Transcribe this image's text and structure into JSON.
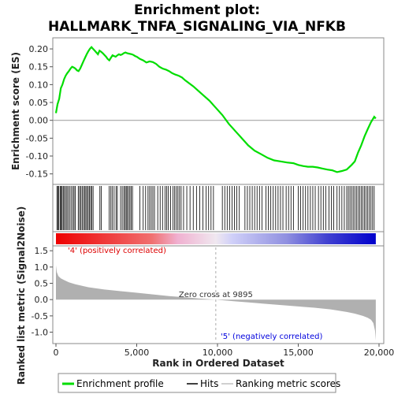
{
  "chart_data": {
    "type": "line",
    "title_line1": "Enrichment plot:",
    "title_line2": "HALLMARK_TNFA_SIGNALING_VIA_NFKB",
    "es_panel": {
      "ylabel": "Enrichment score (ES)",
      "ylim": [
        -0.175,
        0.22
      ],
      "yticks": [
        "0.20",
        "0.15",
        "0.10",
        "0.05",
        "0.00",
        "-0.05",
        "-0.10",
        "-0.15"
      ],
      "ytick_values": [
        0.2,
        0.15,
        0.1,
        0.05,
        0.0,
        -0.05,
        -0.1,
        -0.15
      ],
      "color": "#00dd00",
      "x": [
        0,
        100,
        200,
        300,
        400,
        500,
        600,
        700,
        800,
        900,
        1000,
        1100,
        1200,
        1300,
        1400,
        1500,
        1600,
        1700,
        1800,
        1900,
        2000,
        2100,
        2200,
        2300,
        2400,
        2500,
        2600,
        2700,
        2800,
        2900,
        3000,
        3100,
        3200,
        3300,
        3400,
        3500,
        3600,
        3700,
        3800,
        3900,
        4000,
        4100,
        4200,
        4300,
        4400,
        4500,
        4600,
        4700,
        4800,
        4900,
        5000,
        5200,
        5400,
        5600,
        5800,
        6000,
        6200,
        6400,
        6600,
        6800,
        7000,
        7200,
        7400,
        7600,
        7800,
        8000,
        8500,
        9000,
        9500,
        9900,
        10300,
        10700,
        11100,
        11500,
        11900,
        12300,
        12700,
        13100,
        13500,
        13900,
        14300,
        14700,
        15000,
        15300,
        15600,
        15900,
        16200,
        16500,
        16800,
        17100,
        17400,
        17700,
        18000,
        18300,
        18500,
        18700,
        18900,
        19100,
        19300,
        19500,
        19700,
        19800
      ],
      "y": [
        0.02,
        0.045,
        0.06,
        0.09,
        0.1,
        0.115,
        0.125,
        0.132,
        0.138,
        0.145,
        0.15,
        0.148,
        0.145,
        0.14,
        0.138,
        0.145,
        0.155,
        0.165,
        0.175,
        0.185,
        0.193,
        0.2,
        0.205,
        0.2,
        0.195,
        0.19,
        0.185,
        0.195,
        0.192,
        0.188,
        0.183,
        0.178,
        0.172,
        0.168,
        0.175,
        0.182,
        0.18,
        0.178,
        0.182,
        0.185,
        0.183,
        0.185,
        0.188,
        0.19,
        0.188,
        0.187,
        0.186,
        0.185,
        0.183,
        0.18,
        0.178,
        0.172,
        0.168,
        0.162,
        0.165,
        0.163,
        0.158,
        0.15,
        0.145,
        0.142,
        0.138,
        0.132,
        0.128,
        0.125,
        0.12,
        0.112,
        0.095,
        0.075,
        0.055,
        0.035,
        0.015,
        -0.01,
        -0.03,
        -0.05,
        -0.07,
        -0.085,
        -0.095,
        -0.105,
        -0.112,
        -0.115,
        -0.118,
        -0.12,
        -0.125,
        -0.128,
        -0.13,
        -0.13,
        -0.132,
        -0.135,
        -0.138,
        -0.14,
        -0.145,
        -0.142,
        -0.138,
        -0.125,
        -0.115,
        -0.09,
        -0.07,
        -0.045,
        -0.025,
        -0.005,
        0.01,
        0.005
      ]
    },
    "hits": {
      "positions": [
        60,
        120,
        180,
        260,
        320,
        380,
        450,
        520,
        600,
        680,
        760,
        860,
        940,
        1040,
        1120,
        1200,
        1380,
        1460,
        1540,
        1620,
        1700,
        1780,
        1850,
        1920,
        2000,
        2080,
        2150,
        2220,
        2300,
        2720,
        2800,
        3300,
        3400,
        3480,
        3600,
        3720,
        3800,
        4000,
        4100,
        4200,
        4280,
        4350,
        4420,
        4500,
        4580,
        4660,
        4740,
        5200,
        5400,
        5550,
        5700,
        5800,
        5900,
        6000,
        6100,
        6300,
        6450,
        6600,
        6750,
        6850,
        6950,
        7100,
        7250,
        7350,
        7450,
        7550,
        7650,
        7750,
        7900,
        8100,
        8300,
        8500,
        8700,
        8900,
        9100,
        9300,
        9450,
        9600,
        9750,
        10300,
        10450,
        10600,
        10750,
        10900,
        11050,
        11200,
        11350,
        11700,
        11850,
        12000,
        12150,
        12300,
        12450,
        12600,
        12750,
        13000,
        13150,
        13300,
        13450,
        13600,
        13750,
        13900,
        14050,
        14250,
        14400,
        14550,
        14700,
        15000,
        15150,
        15300,
        15450,
        15600,
        15750,
        15900,
        16050,
        16250,
        16400,
        16550,
        16700,
        16900,
        17050,
        17200,
        17400,
        17550,
        17700,
        17850,
        18000,
        18100,
        18200,
        18300,
        18400,
        18500,
        18600,
        18700,
        18800,
        18900,
        19000,
        19100,
        19200,
        19300,
        19400,
        19500,
        19600,
        19700
      ]
    },
    "ranked_metric": {
      "ylabel": "Ranked list metric (Signal2Noise)",
      "xlabel": "Rank in Ordered Dataset",
      "ylim": [
        -1.35,
        1.65
      ],
      "yticks": [
        "1.5",
        "1.0",
        "0.5",
        "0.0",
        "-0.5",
        "-1.0"
      ],
      "ytick_values": [
        1.5,
        1.0,
        0.5,
        0.0,
        -0.5,
        -1.0
      ],
      "xlim": [
        0,
        20000
      ],
      "xticks": [
        "0",
        "5,000",
        "10,000",
        "15,000",
        "20,000"
      ],
      "xtick_values": [
        0,
        5000,
        10000,
        15000,
        20000
      ],
      "rank_x": [
        0,
        50,
        150,
        300,
        500,
        800,
        1200,
        2000,
        3000,
        4000,
        5000,
        6000,
        7000,
        8000,
        9000,
        9895,
        11000,
        12000,
        13000,
        14000,
        15000,
        16000,
        17000,
        17500,
        18000,
        18500,
        19000,
        19300,
        19500,
        19650,
        19750,
        19800
      ],
      "rank_y": [
        1.05,
        0.85,
        0.72,
        0.65,
        0.6,
        0.53,
        0.47,
        0.38,
        0.31,
        0.26,
        0.21,
        0.16,
        0.11,
        0.07,
        0.03,
        0.0,
        -0.05,
        -0.09,
        -0.13,
        -0.17,
        -0.21,
        -0.25,
        -0.3,
        -0.34,
        -0.38,
        -0.43,
        -0.5,
        -0.56,
        -0.62,
        -0.72,
        -0.95,
        -1.25
      ],
      "zero_cross_label": "Zero cross at 9895",
      "zero_cross_x": 9895,
      "pos_label": "'4' (positively correlated)",
      "neg_label": "'5' (negatively correlated)",
      "pos_color": "#dd0000",
      "neg_color": "#0000dd",
      "fill_color": "#b0b0b0"
    },
    "legend": [
      {
        "label": "Enrichment profile",
        "color": "#00dd00"
      },
      {
        "label": "Hits",
        "color": "#000000"
      },
      {
        "label": "Ranking metric scores",
        "color": "#c0c0c0"
      }
    ]
  }
}
